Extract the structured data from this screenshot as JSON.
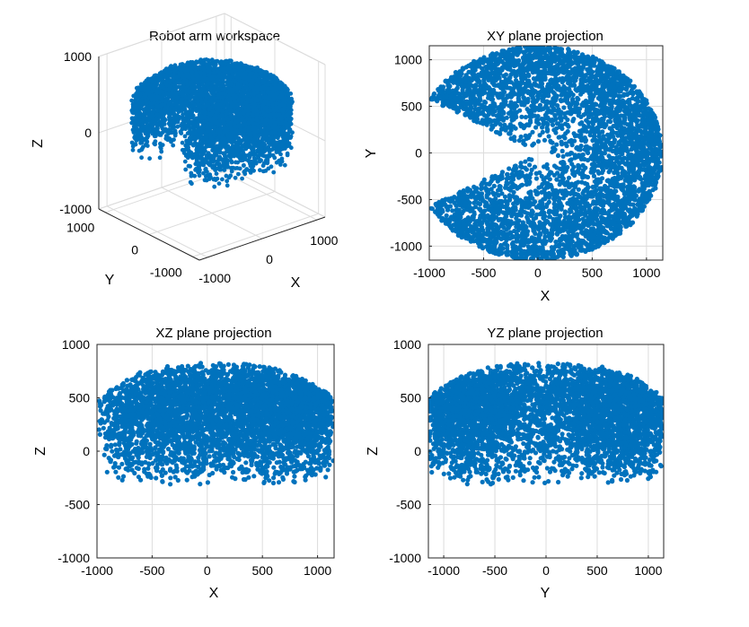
{
  "figure": {
    "background": "#ffffff",
    "marker_color": "#0072BD"
  },
  "chart_data": [
    {
      "type": "scatter3d",
      "title": "Robot arm workspace",
      "xlabel": "X",
      "ylabel": "Y",
      "zlabel": "Z",
      "xlim": [
        -1150,
        1150
      ],
      "ylim": [
        -1150,
        1150
      ],
      "zlim": [
        -1000,
        1000
      ],
      "xticks": [
        -1000,
        0,
        1000
      ],
      "xticklabels": [
        "-1000",
        "0",
        "1000"
      ],
      "yticks": [
        -1000,
        0,
        1000
      ],
      "yticklabels": [
        "-1000",
        "0",
        "1000"
      ],
      "zticks": [
        -1000,
        0,
        1000
      ],
      "zticklabels": [
        "-1000",
        "0",
        "1000"
      ],
      "grid": true,
      "description_of_points": "same point cloud as the projections (radius up to ~1150, z from ~-350 to ~830, missing wedge along -X)"
    },
    {
      "type": "scatter",
      "title": "XY plane projection",
      "xlabel": "X",
      "ylabel": "Y",
      "xlim": [
        -1000,
        1150
      ],
      "ylim": [
        -1150,
        1150
      ],
      "xticks": [
        -1000,
        -500,
        0,
        500,
        1000
      ],
      "xticklabels": [
        "-1000",
        "-500",
        "0",
        "500",
        "1000"
      ],
      "yticks": [
        -1000,
        -500,
        0,
        500,
        1000
      ],
      "yticklabels": [
        "-1000",
        "-500",
        "0",
        "500",
        "1000"
      ],
      "grid": true,
      "series": [
        {
          "projection": "xy"
        }
      ]
    },
    {
      "type": "scatter",
      "title": "XZ plane projection",
      "xlabel": "X",
      "ylabel": "Z",
      "xlim": [
        -1000,
        1150
      ],
      "ylim": [
        -1000,
        1000
      ],
      "xticks": [
        -1000,
        -500,
        0,
        500,
        1000
      ],
      "xticklabels": [
        "-1000",
        "-500",
        "0",
        "500",
        "1000"
      ],
      "yticks": [
        -1000,
        -500,
        0,
        500,
        1000
      ],
      "yticklabels": [
        "-1000",
        "-500",
        "0",
        "500",
        "1000"
      ],
      "grid": true,
      "series": [
        {
          "projection": "xz"
        }
      ]
    },
    {
      "type": "scatter",
      "title": "YZ plane projection",
      "xlabel": "Y",
      "ylabel": "Z",
      "xlim": [
        -1150,
        1150
      ],
      "ylim": [
        -1000,
        1000
      ],
      "xticks": [
        -1000,
        -500,
        0,
        500,
        1000
      ],
      "xticklabels": [
        "-1000",
        "-500",
        "0",
        "500",
        "1000"
      ],
      "yticks": [
        -1000,
        -500,
        0,
        500,
        1000
      ],
      "yticklabels": [
        "-1000",
        "-500",
        "0",
        "500",
        "1000"
      ],
      "grid": true,
      "series": [
        {
          "projection": "yz"
        }
      ]
    }
  ],
  "workspace": {
    "point_count": 4500,
    "max_radius": 1150,
    "z_min": -350,
    "z_max": 830,
    "excluded_wedge_half_angle_deg": 30,
    "excluded_wedge_center_deg": 180
  }
}
